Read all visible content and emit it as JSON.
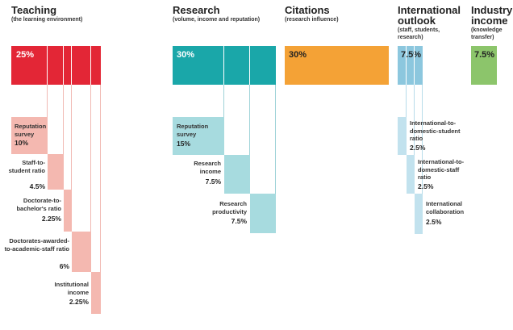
{
  "teaching": {
    "title": "Teaching",
    "subtitle": "(the learning environment)",
    "percent": "25%",
    "items": [
      {
        "label": "Reputation survey",
        "value": "10%"
      },
      {
        "label": "Staff-to-student ratio",
        "value": "4.5%"
      },
      {
        "label": "Doctorate-to-bachelor's ratio",
        "value": "2.25%"
      },
      {
        "label": "Doctorates-awarded-to-academic-staff ratio",
        "value": "6%"
      },
      {
        "label": "Institutional income",
        "value": "2.25%"
      }
    ]
  },
  "research": {
    "title": "Research",
    "subtitle": "(volume, income and reputation)",
    "percent": "30%",
    "items": [
      {
        "label": "Reputation survey",
        "value": "15%"
      },
      {
        "label": "Research income",
        "value": "7.5%"
      },
      {
        "label": "Research productivity",
        "value": "7.5%"
      }
    ]
  },
  "citations": {
    "title": "Citations",
    "subtitle": "(research influence)",
    "percent": "30%"
  },
  "international": {
    "title_line1": "International",
    "title_line2": "outlook",
    "subtitle": "(staff, students, research)",
    "percent": "7.5%",
    "items": [
      {
        "label": "International-to-domestic-student ratio",
        "value": "2.5%"
      },
      {
        "label": "International-to-domestic-staff ratio",
        "value": "2.5%"
      },
      {
        "label": "International collaboration",
        "value": "2.5%"
      }
    ]
  },
  "industry": {
    "title_line1": "Industry",
    "title_line2": "income",
    "subtitle": "(knowledge transfer)",
    "percent": "7.5%"
  },
  "colors": {
    "teaching": "#e32636",
    "teaching_light": "#f4b8b0",
    "research": "#1aa7a9",
    "research_light": "#a7dbdf",
    "citations": "#f4a236",
    "international": "#8cc7de",
    "international_light": "#c2e2ee",
    "industry": "#8cc56b"
  }
}
